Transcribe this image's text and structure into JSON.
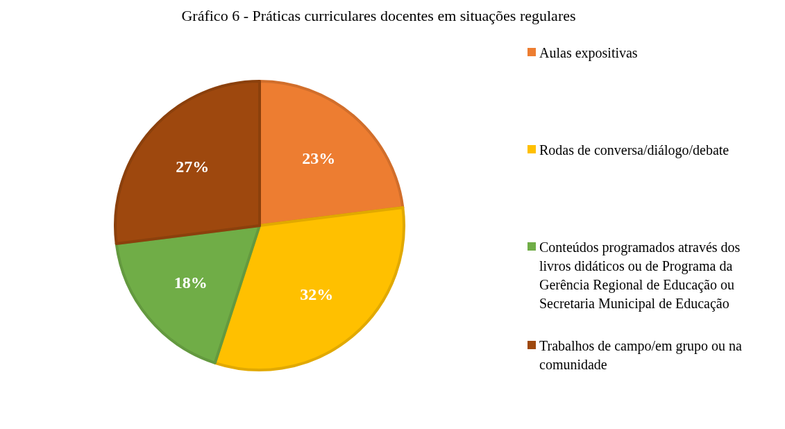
{
  "chart_data": {
    "type": "pie",
    "title": "Gráfico 6 - Práticas curriculares docentes em situações regulares",
    "categories": [
      "Aulas expositivas",
      "Rodas de conversa/diálogo/debate",
      "Conteúdos programados através dos livros didáticos ou de Programa da Gerência Regional de Educação ou Secretaria Municipal de Educação",
      "Trabalhos de campo/em grupo ou na comunidade"
    ],
    "values": [
      23,
      32,
      18,
      27
    ],
    "colors": [
      "#ed7d31",
      "#ffc000",
      "#70ad47",
      "#9e480e"
    ],
    "value_labels": [
      "23%",
      "32%",
      "18%",
      "27%"
    ],
    "legend": "right"
  }
}
